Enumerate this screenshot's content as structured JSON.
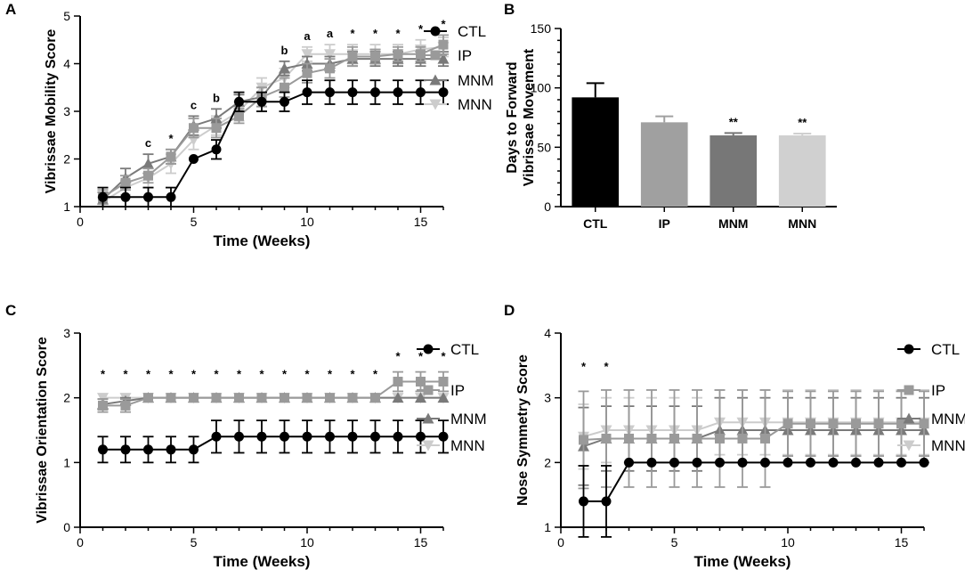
{
  "chart_data": [
    {
      "panel": "A",
      "type": "line",
      "xlabel": "Time (Weeks)",
      "ylabel": "Vibrissae Mobility Score",
      "xlim": [
        0,
        16
      ],
      "ylim": [
        1,
        5
      ],
      "xticks": [
        "0",
        "5",
        "10",
        "15"
      ],
      "yticks": [
        "1",
        "2",
        "3",
        "4",
        "5"
      ],
      "x": [
        1,
        2,
        3,
        4,
        5,
        6,
        7,
        8,
        9,
        10,
        11,
        12,
        13,
        14,
        15,
        16
      ],
      "series": [
        {
          "name": "CTL",
          "color": "#000000",
          "marker": "circle",
          "values": [
            1.2,
            1.2,
            1.2,
            1.2,
            2.0,
            2.2,
            3.2,
            3.2,
            3.2,
            3.4,
            3.4,
            3.4,
            3.4,
            3.4,
            3.4,
            3.4
          ],
          "errors": [
            0.2,
            0.2,
            0.2,
            0.2,
            0.0,
            0.2,
            0.2,
            0.2,
            0.2,
            0.25,
            0.25,
            0.25,
            0.25,
            0.25,
            0.25,
            0.25
          ]
        },
        {
          "name": "IP",
          "color": "#9a9a9a",
          "marker": "square",
          "values": [
            1.2,
            1.5,
            1.65,
            2.05,
            2.65,
            2.65,
            2.9,
            3.3,
            3.5,
            3.8,
            3.9,
            4.15,
            4.15,
            4.2,
            4.2,
            4.4
          ],
          "errors": [
            0.15,
            0.15,
            0.15,
            0.15,
            0.2,
            0.2,
            0.15,
            0.2,
            0.2,
            0.2,
            0.2,
            0.2,
            0.15,
            0.15,
            0.15,
            0.2
          ]
        },
        {
          "name": "MNM",
          "color": "#7a7a7a",
          "marker": "triangle-up",
          "values": [
            1.15,
            1.6,
            1.9,
            2.05,
            2.7,
            2.85,
            3.2,
            3.3,
            3.9,
            4.0,
            4.0,
            4.1,
            4.1,
            4.1,
            4.1,
            4.1
          ],
          "errors": [
            0.15,
            0.2,
            0.2,
            0.15,
            0.2,
            0.2,
            0.15,
            0.2,
            0.15,
            0.15,
            0.15,
            0.15,
            0.15,
            0.15,
            0.15,
            0.15
          ]
        },
        {
          "name": "MNN",
          "color": "#cccccc",
          "marker": "triangle-down",
          "values": [
            1.1,
            1.4,
            1.6,
            1.9,
            2.4,
            2.7,
            3.0,
            3.5,
            3.7,
            4.2,
            4.2,
            4.2,
            4.2,
            4.2,
            4.3,
            4.35
          ],
          "errors": [
            0.1,
            0.15,
            0.2,
            0.2,
            0.2,
            0.2,
            0.2,
            0.2,
            0.2,
            0.15,
            0.2,
            0.2,
            0.2,
            0.2,
            0.2,
            0.2
          ]
        }
      ],
      "annotations": [
        {
          "x": 3,
          "label": "c"
        },
        {
          "x": 4,
          "label": "*"
        },
        {
          "x": 5,
          "label": "c"
        },
        {
          "x": 6,
          "label": "b"
        },
        {
          "x": 9,
          "label": "b"
        },
        {
          "x": 10,
          "label": "a"
        },
        {
          "x": 11,
          "label": "a"
        },
        {
          "x": 12,
          "label": "*"
        },
        {
          "x": 13,
          "label": "*"
        },
        {
          "x": 14,
          "label": "*"
        },
        {
          "x": 15,
          "label": "*"
        },
        {
          "x": 16,
          "label": "*"
        }
      ]
    },
    {
      "panel": "B",
      "type": "bar",
      "ylabel_line1": "Days to Forward",
      "ylabel_line2": "Vibrissae Movement",
      "ylim": [
        0,
        150
      ],
      "yticks": [
        "0",
        "50",
        "100",
        "150"
      ],
      "categories": [
        "CTL",
        "IP",
        "MNM",
        "MNN"
      ],
      "values": [
        92,
        71,
        60,
        60
      ],
      "errors": [
        12,
        5,
        2,
        1.5
      ],
      "colors": [
        "#000000",
        "#a0a0a0",
        "#777777",
        "#d0d0d0"
      ],
      "annotations": [
        "",
        "",
        "**",
        "**"
      ]
    },
    {
      "panel": "C",
      "type": "line",
      "xlabel": "Time (Weeks)",
      "ylabel": "Vibrissae Orientation Score",
      "xlim": [
        0,
        16
      ],
      "ylim": [
        0,
        3
      ],
      "xticks": [
        "0",
        "5",
        "10",
        "15"
      ],
      "yticks": [
        "0",
        "1",
        "2",
        "3"
      ],
      "x": [
        1,
        2,
        3,
        4,
        5,
        6,
        7,
        8,
        9,
        10,
        11,
        12,
        13,
        14,
        15,
        16
      ],
      "series": [
        {
          "name": "CTL",
          "color": "#000000",
          "marker": "circle",
          "values": [
            1.2,
            1.2,
            1.2,
            1.2,
            1.2,
            1.4,
            1.4,
            1.4,
            1.4,
            1.4,
            1.4,
            1.4,
            1.4,
            1.4,
            1.4,
            1.4
          ],
          "errors": [
            0.2,
            0.2,
            0.2,
            0.2,
            0.2,
            0.25,
            0.25,
            0.25,
            0.25,
            0.25,
            0.25,
            0.25,
            0.25,
            0.25,
            0.25,
            0.25
          ]
        },
        {
          "name": "IP",
          "color": "#9a9a9a",
          "marker": "square",
          "values": [
            1.88,
            1.88,
            2,
            2,
            2,
            2,
            2,
            2,
            2,
            2,
            2,
            2,
            2,
            2.25,
            2.25,
            2.25
          ],
          "errors": [
            0.1,
            0.1,
            0,
            0,
            0,
            0,
            0,
            0,
            0,
            0,
            0,
            0,
            0,
            0.15,
            0.15,
            0.15
          ]
        },
        {
          "name": "MNM",
          "color": "#7a7a7a",
          "marker": "triangle-up",
          "values": [
            1.9,
            1.95,
            2,
            2,
            2,
            2,
            2,
            2,
            2,
            2,
            2,
            2,
            2,
            2,
            2,
            2
          ],
          "errors": [
            0.08,
            0.05,
            0,
            0,
            0,
            0,
            0,
            0,
            0,
            0,
            0,
            0,
            0,
            0,
            0,
            0
          ]
        },
        {
          "name": "MNN",
          "color": "#cccccc",
          "marker": "triangle-down",
          "values": [
            2,
            2,
            2,
            2,
            2,
            2,
            2,
            2,
            2,
            2,
            2,
            2,
            2,
            2,
            2,
            2
          ],
          "errors": [
            0,
            0,
            0,
            0,
            0,
            0,
            0,
            0,
            0,
            0,
            0,
            0,
            0,
            0,
            0,
            0
          ]
        }
      ],
      "annotations": [
        {
          "x": 1,
          "label": "*"
        },
        {
          "x": 2,
          "label": "*"
        },
        {
          "x": 3,
          "label": "*"
        },
        {
          "x": 4,
          "label": "*"
        },
        {
          "x": 5,
          "label": "*"
        },
        {
          "x": 6,
          "label": "*"
        },
        {
          "x": 7,
          "label": "*"
        },
        {
          "x": 8,
          "label": "*"
        },
        {
          "x": 9,
          "label": "*"
        },
        {
          "x": 10,
          "label": "*"
        },
        {
          "x": 11,
          "label": "*"
        },
        {
          "x": 12,
          "label": "*"
        },
        {
          "x": 13,
          "label": "*"
        },
        {
          "x": 14,
          "label": "*"
        },
        {
          "x": 15,
          "label": "*"
        },
        {
          "x": 16,
          "label": "*"
        }
      ]
    },
    {
      "panel": "D",
      "type": "line",
      "xlabel": "Time (Weeks)",
      "ylabel": "Nose Symmetry Score",
      "xlim": [
        0,
        16
      ],
      "ylim": [
        1,
        4
      ],
      "xticks": [
        "0",
        "5",
        "10",
        "15"
      ],
      "yticks": [
        "1",
        "2",
        "3",
        "4"
      ],
      "x": [
        1,
        2,
        3,
        4,
        5,
        6,
        7,
        8,
        9,
        10,
        11,
        12,
        13,
        14,
        15,
        16
      ],
      "series": [
        {
          "name": "CTL",
          "color": "#000000",
          "marker": "circle",
          "values": [
            1.4,
            1.4,
            2,
            2,
            2,
            2,
            2,
            2,
            2,
            2,
            2,
            2,
            2,
            2,
            2,
            2
          ],
          "errors": [
            0.55,
            0.55,
            0,
            0,
            0,
            0,
            0,
            0,
            0,
            0,
            0,
            0,
            0,
            0,
            0,
            0
          ]
        },
        {
          "name": "IP",
          "color": "#9a9a9a",
          "marker": "square",
          "values": [
            2.35,
            2.37,
            2.37,
            2.37,
            2.37,
            2.37,
            2.37,
            2.37,
            2.37,
            2.6,
            2.6,
            2.6,
            2.6,
            2.6,
            2.6,
            2.6
          ],
          "errors": [
            0.75,
            0.75,
            0.75,
            0.75,
            0.75,
            0.75,
            0.75,
            0.75,
            0.75,
            0.5,
            0.5,
            0.5,
            0.5,
            0.5,
            0.5,
            0.5
          ]
        },
        {
          "name": "MNM",
          "color": "#7a7a7a",
          "marker": "triangle-up",
          "values": [
            2.25,
            2.37,
            2.37,
            2.37,
            2.37,
            2.37,
            2.5,
            2.5,
            2.5,
            2.5,
            2.5,
            2.5,
            2.5,
            2.5,
            2.5,
            2.5
          ],
          "errors": [
            0.6,
            0.5,
            0.5,
            0.5,
            0.5,
            0.5,
            0.5,
            0.5,
            0.5,
            0.5,
            0.5,
            0.5,
            0.5,
            0.5,
            0.5,
            0.5
          ]
        },
        {
          "name": "MNN",
          "color": "#cccccc",
          "marker": "triangle-down",
          "values": [
            2.4,
            2.5,
            2.5,
            2.5,
            2.5,
            2.5,
            2.62,
            2.62,
            2.62,
            2.62,
            2.62,
            2.62,
            2.62,
            2.62,
            2.62,
            2.62
          ],
          "errors": [
            0.5,
            0.5,
            0.5,
            0.5,
            0.5,
            0.5,
            0.5,
            0.5,
            0.5,
            0.5,
            0.5,
            0.5,
            0.5,
            0.5,
            0.5,
            0.5
          ]
        }
      ],
      "annotations": [
        {
          "x": 1,
          "label": "*"
        },
        {
          "x": 2,
          "label": "*"
        }
      ]
    }
  ]
}
